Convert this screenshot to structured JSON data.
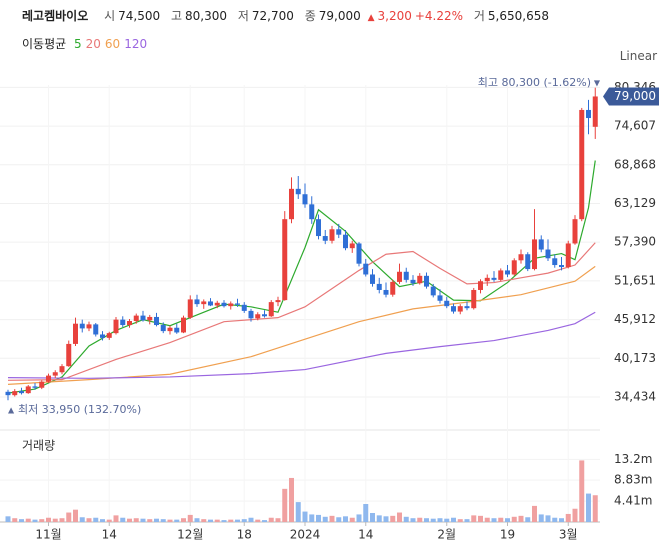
{
  "header": {
    "name": "레고켐바이오",
    "open_label": "시",
    "open": "74,500",
    "high_label": "고",
    "high": "80,300",
    "low_label": "저",
    "low": "72,700",
    "close_label": "종",
    "close": "79,000",
    "change": "3,200",
    "change_pct": "+4.22%",
    "volume_label": "거",
    "volume": "5,650,658",
    "ma_label": "이동평균",
    "scale": "Linear"
  },
  "chart_data": [
    {
      "type": "candlestick",
      "up_color": "#e8413c",
      "down_color": "#2f6fd6",
      "ylim": [
        32500,
        80700
      ],
      "yticks": [
        {
          "value": 34434,
          "label": "34,434"
        },
        {
          "value": 40173,
          "label": "40,173"
        },
        {
          "value": 45912,
          "label": "45,912"
        },
        {
          "value": 51651,
          "label": "51,651"
        },
        {
          "value": 57390,
          "label": "57,390"
        },
        {
          "value": 63129,
          "label": "63,129"
        },
        {
          "value": 68868,
          "label": "68,868"
        },
        {
          "value": 74607,
          "label": "74,607"
        },
        {
          "value": 80346,
          "label": "80,346"
        }
      ],
      "grid": true,
      "open": [
        35200,
        34700,
        35300,
        35000,
        36000,
        35800,
        36700,
        37600,
        38100,
        39000,
        42300,
        45300,
        44600,
        45200,
        43700,
        43200,
        43900,
        45900,
        45100,
        45700,
        46500,
        45800,
        46300,
        45100,
        44200,
        44700,
        44000,
        46200,
        48900,
        48200,
        48600,
        48000,
        48400,
        47900,
        48300,
        48100,
        47200,
        46100,
        46700,
        46400,
        48500,
        48800,
        60800,
        65300,
        64500,
        63000,
        60800,
        58300,
        57600,
        59300,
        58500,
        56500,
        57200,
        54200,
        52600,
        51200,
        50300,
        49600,
        51500,
        53000,
        51800,
        51300,
        52400,
        50800,
        49500,
        48700,
        47900,
        47100,
        47900,
        47600,
        50300,
        51600,
        52100,
        51800,
        53200,
        52600,
        54700,
        55600,
        53400,
        57800,
        56300,
        55000,
        54000,
        53700,
        57200,
        60800,
        77000,
        74500
      ],
      "high": [
        35500,
        35600,
        35800,
        36200,
        36500,
        36900,
        37900,
        38400,
        39300,
        42800,
        46200,
        45900,
        45600,
        45400,
        44200,
        44100,
        46300,
        46400,
        46000,
        46800,
        47200,
        46600,
        46900,
        45500,
        45000,
        45300,
        46500,
        49500,
        49600,
        48900,
        49100,
        48700,
        48800,
        48600,
        49000,
        48500,
        47500,
        47000,
        47300,
        48800,
        49300,
        62000,
        67000,
        67200,
        66100,
        64200,
        61500,
        59200,
        59800,
        60100,
        59200,
        57600,
        57400,
        54900,
        53400,
        52100,
        51400,
        51800,
        54200,
        53600,
        52500,
        52800,
        52900,
        51200,
        50400,
        49300,
        48300,
        48200,
        48600,
        50600,
        51900,
        52600,
        53100,
        53500,
        54000,
        55000,
        56300,
        55900,
        62300,
        58400,
        57800,
        55600,
        55200,
        57600,
        61400,
        77300,
        78500,
        80300
      ],
      "low": [
        33950,
        34500,
        34800,
        34900,
        35500,
        35600,
        36500,
        37200,
        37800,
        38900,
        42000,
        44000,
        44200,
        43400,
        42800,
        42900,
        43700,
        44800,
        44700,
        45300,
        45600,
        45200,
        44900,
        43900,
        43700,
        43800,
        43900,
        46000,
        47800,
        47500,
        47900,
        47600,
        47700,
        47400,
        47800,
        46900,
        45600,
        45800,
        46200,
        46300,
        47900,
        48700,
        60200,
        63800,
        62500,
        60100,
        57800,
        57100,
        57200,
        58000,
        56200,
        55800,
        53800,
        52300,
        50800,
        49800,
        49200,
        49300,
        51200,
        51400,
        50900,
        51100,
        50500,
        49200,
        48300,
        47600,
        46800,
        46700,
        47300,
        47400,
        49800,
        50900,
        51500,
        51600,
        52200,
        52400,
        54200,
        53100,
        53200,
        55900,
        54600,
        53600,
        53200,
        53500,
        57000,
        60500,
        73400,
        72700
      ],
      "close": [
        34700,
        35300,
        35000,
        36000,
        35800,
        36700,
        37600,
        38100,
        39000,
        42300,
        45300,
        44600,
        45200,
        43700,
        43200,
        43900,
        45900,
        45100,
        45700,
        46500,
        45800,
        46300,
        45100,
        44200,
        44700,
        44000,
        46200,
        48900,
        48200,
        48600,
        48000,
        48400,
        47900,
        48300,
        48100,
        47200,
        46100,
        46700,
        46400,
        48500,
        48800,
        60800,
        65300,
        64500,
        63000,
        60800,
        58300,
        57600,
        59300,
        58500,
        56500,
        57200,
        54200,
        52600,
        51200,
        50300,
        49600,
        51500,
        53000,
        51800,
        51300,
        52400,
        50800,
        49500,
        48700,
        47900,
        47100,
        47900,
        47600,
        50300,
        51600,
        52100,
        51800,
        53200,
        52600,
        54700,
        55600,
        53400,
        57800,
        56300,
        55000,
        54000,
        53700,
        57200,
        60800,
        77000,
        75800,
        79000
      ],
      "ma": [
        {
          "name": "5",
          "color": "#2eaa2e",
          "x": [
            0,
            4,
            8,
            12,
            16,
            20,
            24,
            28,
            32,
            36,
            40,
            44,
            46,
            50,
            54,
            58,
            62,
            66,
            70,
            74,
            78,
            82,
            84,
            86,
            87
          ],
          "values": [
            35000,
            35600,
            37400,
            42000,
            44300,
            45900,
            45000,
            46600,
            48200,
            47800,
            47000,
            56600,
            62200,
            59000,
            54500,
            50800,
            51600,
            48800,
            48700,
            51400,
            55000,
            55700,
            54800,
            62500,
            69500
          ]
        },
        {
          "name": "20",
          "color": "#e87878",
          "x": [
            0,
            8,
            16,
            24,
            32,
            40,
            44,
            48,
            52,
            56,
            60,
            64,
            68,
            72,
            76,
            80,
            84,
            87
          ],
          "values": [
            36900,
            37000,
            40000,
            42500,
            45600,
            46200,
            47800,
            50500,
            53200,
            55600,
            56000,
            53500,
            51200,
            51400,
            52100,
            52800,
            54000,
            57300
          ]
        },
        {
          "name": "60",
          "color": "#f0a050",
          "x": [
            0,
            12,
            24,
            36,
            44,
            52,
            60,
            68,
            76,
            84,
            87
          ],
          "values": [
            36300,
            37000,
            37800,
            40400,
            43000,
            45600,
            47500,
            48500,
            49600,
            51600,
            53800
          ]
        },
        {
          "name": "120",
          "color": "#9a66e0",
          "x": [
            0,
            12,
            24,
            36,
            44,
            56,
            64,
            72,
            80,
            84,
            87
          ],
          "values": [
            37300,
            37200,
            37400,
            37900,
            38500,
            40900,
            41900,
            42800,
            44300,
            45300,
            47000
          ]
        }
      ],
      "current": {
        "value": 79000,
        "label": "79,000"
      },
      "high_annotation": "최고 80,300 (-1.62%)",
      "low_annotation": "최저 33,950 (132.70%)"
    },
    {
      "type": "bar",
      "title": "거래량",
      "categories": [
        null,
        null,
        null,
        null,
        null,
        null,
        "11월",
        null,
        null,
        null,
        null,
        null,
        null,
        null,
        null,
        "14",
        null,
        null,
        null,
        null,
        null,
        null,
        null,
        null,
        null,
        null,
        null,
        "12월",
        null,
        null,
        null,
        null,
        null,
        null,
        null,
        "18",
        null,
        null,
        null,
        null,
        null,
        null,
        null,
        null,
        "2024",
        null,
        null,
        null,
        null,
        null,
        null,
        null,
        null,
        "14",
        null,
        null,
        null,
        null,
        null,
        null,
        null,
        null,
        null,
        null,
        null,
        "2월",
        null,
        null,
        null,
        null,
        null,
        null,
        null,
        null,
        "19",
        null,
        null,
        null,
        null,
        null,
        null,
        null,
        null,
        "3월",
        null,
        null,
        null,
        null
      ],
      "values": [
        1.2,
        0.8,
        0.6,
        0.7,
        0.5,
        0.6,
        0.9,
        0.7,
        0.8,
        2.0,
        2.6,
        1.0,
        0.8,
        0.9,
        0.6,
        0.5,
        1.4,
        0.9,
        0.7,
        0.8,
        0.7,
        0.6,
        0.7,
        0.6,
        0.5,
        0.5,
        0.8,
        1.5,
        0.8,
        0.6,
        0.5,
        0.5,
        0.4,
        0.5,
        0.5,
        0.6,
        0.9,
        0.5,
        0.4,
        0.9,
        0.8,
        7.0,
        9.3,
        4.2,
        2.2,
        1.6,
        1.5,
        1.1,
        1.3,
        1.0,
        1.2,
        0.9,
        1.6,
        3.8,
        1.9,
        1.4,
        1.2,
        1.3,
        2.0,
        1.1,
        0.8,
        0.9,
        0.8,
        0.7,
        0.8,
        0.7,
        0.9,
        0.6,
        0.6,
        1.4,
        1.3,
        0.9,
        0.8,
        0.9,
        0.8,
        1.1,
        1.3,
        1.0,
        3.4,
        1.6,
        1.4,
        0.9,
        0.8,
        1.7,
        2.8,
        13.0,
        6.0,
        5.65
      ],
      "ylim": [
        0,
        19
      ],
      "yticks": [
        {
          "value": 4.41,
          "label": "4.41m"
        },
        {
          "value": 8.83,
          "label": "8.83m"
        },
        {
          "value": 13.23,
          "label": "13.2m"
        }
      ]
    }
  ]
}
